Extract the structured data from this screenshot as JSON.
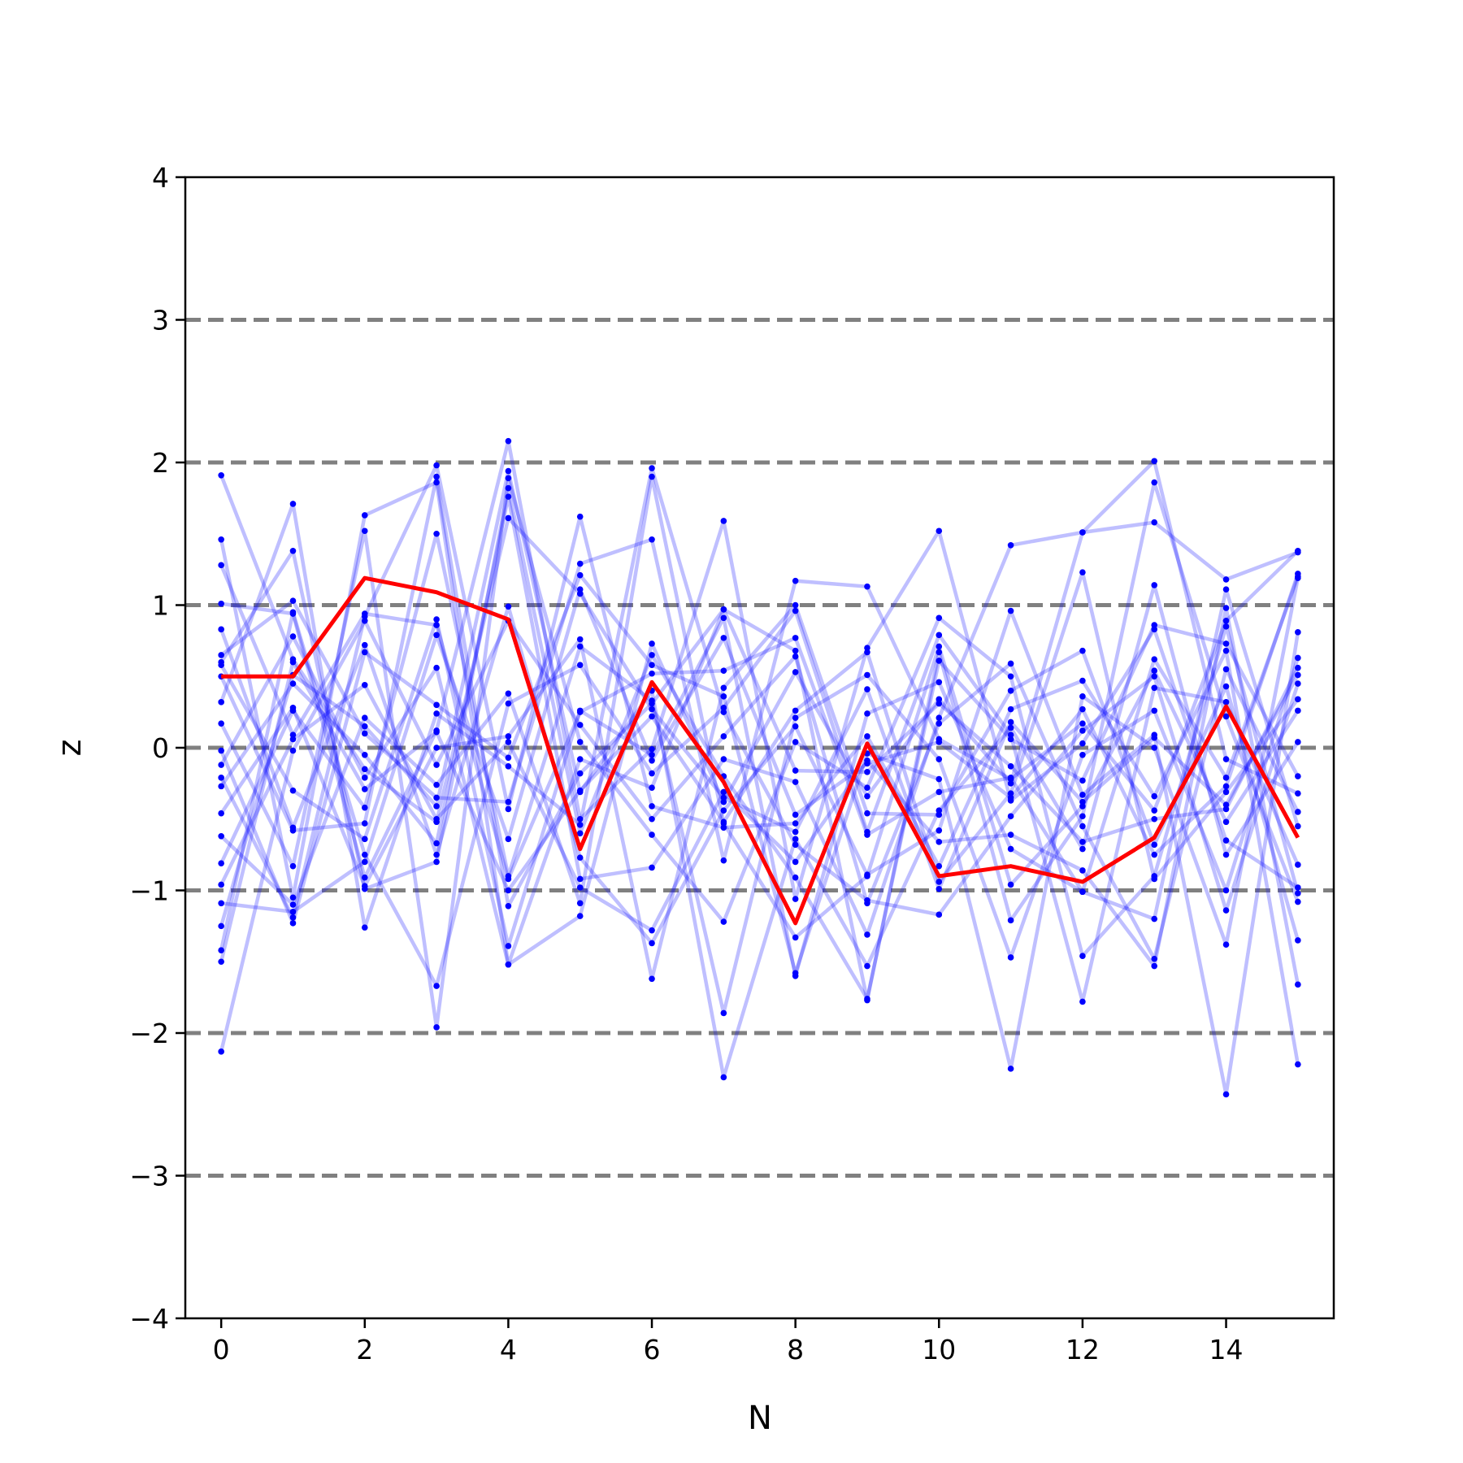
{
  "chart_data": {
    "type": "line",
    "xlabel": "N",
    "ylabel": "z",
    "xlim": [
      -0.5,
      15.5
    ],
    "ylim": [
      -4,
      4
    ],
    "x": [
      0,
      1,
      2,
      3,
      4,
      5,
      6,
      7,
      8,
      9,
      10,
      11,
      12,
      13,
      14,
      15
    ],
    "x_ticks": [
      0,
      2,
      4,
      6,
      8,
      10,
      12,
      14
    ],
    "y_ticks": [
      -4,
      -3,
      -2,
      -1,
      0,
      1,
      2,
      3,
      4
    ],
    "reference_lines": [
      -3,
      -2,
      -1,
      0,
      1,
      2,
      3
    ],
    "grid": false,
    "legend": "none",
    "colors": {
      "highlight": "#ff0000",
      "trajectories": "#0000ff",
      "reference": "#808080"
    },
    "highlight_series": {
      "values": [
        0.5,
        0.5,
        1.19,
        1.09,
        0.9,
        -0.71,
        0.46,
        -0.24,
        -1.23,
        0.03,
        -0.9,
        -0.83,
        -0.94,
        -0.63,
        0.29,
        -0.63
      ]
    },
    "trajectory_series": [
      {
        "values": [
          1.91,
          0.62,
          -0.15,
          -0.52,
          1.61,
          1.08,
          0.27,
          -0.35,
          -0.59,
          0.41,
          -0.99,
          0.18,
          -0.38,
          0.07,
          -0.4,
          0.51
        ]
      },
      {
        "values": [
          1.46,
          -1.05,
          1.63,
          1.86,
          -1.52,
          -0.08,
          -0.28,
          0.97,
          0.68,
          -1.77,
          0.67,
          -1.21,
          -0.48,
          1.86,
          0.22,
          -1.08
        ]
      },
      {
        "values": [
          1.28,
          0.09,
          0.94,
          0.86,
          -0.92,
          0.25,
          0.52,
          0.54,
          0.77,
          -0.61,
          -0.31,
          -0.21,
          -1.01,
          -1.2,
          1.11,
          -0.55
        ]
      },
      {
        "values": [
          1.01,
          0.94,
          -0.91,
          0.12,
          2.15,
          -0.5,
          -0.01,
          1.59,
          -1.06,
          0.7,
          1.52,
          -0.37,
          0.03,
          0.83,
          -0.65,
          -0.98
        ]
      },
      {
        "values": [
          0.83,
          -0.56,
          0.72,
          -0.75,
          0.99,
          -0.77,
          -1.37,
          -0.44,
          0.15,
          -0.89,
          -0.58,
          0.96,
          -0.33,
          0.09,
          -2.43,
          0.81
        ]
      },
      {
        "values": [
          0.65,
          1.03,
          0.1,
          -0.35,
          -0.38,
          1.29,
          1.46,
          -0.79,
          1.17,
          1.13,
          0.06,
          -0.22,
          0.17,
          -0.44,
          0.89,
          1.38
        ]
      },
      {
        "values": [
          0.58,
          -0.3,
          -0.64,
          0.9,
          -1.39,
          0.26,
          -0.05,
          0.91,
          -1.6,
          0.24,
          0.46,
          -0.71,
          -1.01,
          0.62,
          -0.21,
          1.2
        ]
      },
      {
        "values": [
          0.32,
          1.71,
          -1.26,
          0.24,
          -0.13,
          -0.54,
          1.96,
          0.25,
          -0.68,
          -1.07,
          -1.17,
          -0.48,
          0.12,
          0.5,
          -1.14,
          0.45
        ]
      },
      {
        "values": [
          0.17,
          -0.83,
          1.52,
          -1.96,
          1.89,
          0.04,
          -0.61,
          -1.22,
          0.04,
          -0.28,
          0.91,
          0.5,
          -1.46,
          -0.9,
          0.85,
          -1.02
        ]
      },
      {
        "values": [
          -0.12,
          0.78,
          -0.21,
          0.56,
          -1.52,
          -1.18,
          0.73,
          -0.38,
          0.53,
          -0.34,
          0.34,
          -0.25,
          1.51,
          2.01,
          -0.08,
          -0.32
        ]
      },
      {
        "values": [
          -0.21,
          -1.19,
          0.92,
          1.98,
          -0.43,
          1.62,
          -0.41,
          -0.56,
          -0.53,
          0.08,
          -0.83,
          0.27,
          0.47,
          -0.34,
          0.68,
          -2.22
        ]
      },
      {
        "values": [
          -0.27,
          0.45,
          -0.05,
          -0.67,
          1.76,
          -0.92,
          -0.84,
          -0.08,
          -0.24,
          -1.31,
          0.21,
          1.42,
          1.51,
          1.58,
          1.18,
          1.37
        ]
      },
      {
        "values": [
          -0.46,
          0.28,
          -0.97,
          0.0,
          0.08,
          0.76,
          -1.62,
          0.42,
          1.0,
          -0.46,
          -0.47,
          0.4,
          0.68,
          -0.68,
          0.43,
          -1.35
        ]
      },
      {
        "values": [
          -0.62,
          -1.1,
          0.21,
          -0.26,
          0.38,
          -1.09,
          1.9,
          -0.53,
          -1.33,
          -0.9,
          0.71,
          -0.96,
          -0.41,
          0.54,
          -0.52,
          0.26
        ]
      },
      {
        "values": [
          -0.81,
          0.26,
          -0.42,
          1.5,
          -0.9,
          0.71,
          0.33,
          -1.86,
          0.21,
          0.51,
          -0.08,
          -1.47,
          -0.05,
          0.26,
          -1.0,
          0.63
        ]
      },
      {
        "values": [
          -0.96,
          0.06,
          0.44,
          -0.5,
          0.04,
          -0.98,
          -1.28,
          -0.31,
          -0.8,
          -0.09,
          -0.66,
          -0.61,
          -0.86,
          -1.53,
          0.98,
          -1.66
        ]
      },
      {
        "values": [
          -1.09,
          -1.15,
          -0.8,
          0.79,
          -0.64,
          1.11,
          -0.09,
          0.77,
          -0.47,
          -0.11,
          0.04,
          -0.35,
          0.27,
          -0.75,
          -0.27,
          1.22
        ]
      },
      {
        "values": [
          -1.25,
          0.51,
          0.15,
          -0.41,
          1.94,
          -0.31,
          0.4,
          -2.31,
          -0.64,
          -1.53,
          -0.44,
          0.14,
          -0.71,
          1.14,
          -0.75,
          0.04
        ]
      },
      {
        "values": [
          -1.42,
          0.95,
          -0.75,
          -1.67,
          0.31,
          0.58,
          -0.18,
          0.28,
          0.96,
          -0.59,
          0.79,
          0.09,
          -1.78,
          0.42,
          0.32,
          -0.82
        ]
      },
      {
        "values": [
          -1.5,
          0.6,
          -0.29,
          0.11,
          -1.0,
          -0.3,
          0.22,
          -0.52,
          0.26,
          0.67,
          -0.94,
          -0.32,
          1.23,
          -0.92,
          -0.31,
          0.34
        ]
      },
      {
        "values": [
          -2.13,
          -0.02,
          0.89,
          -0.12,
          0.89,
          0.16,
          -0.5,
          0.08,
          0.64,
          -1.09,
          0.17,
          0.59,
          -0.55,
          -1.48,
          0.55,
          -0.45
        ]
      },
      {
        "values": [
          -0.02,
          -1.23,
          0.67,
          0.3,
          -0.07,
          1.21,
          0.58,
          0.36,
          -1.58,
          -0.04,
          -0.22,
          -2.25,
          0.36,
          0.0,
          -1.38,
          1.19
        ]
      },
      {
        "values": [
          0.5,
          -0.58,
          -0.53,
          1.9,
          -1.11,
          -0.18,
          0.31,
          0.97,
          -0.16,
          -0.17,
          0.31,
          -0.13,
          -0.66,
          -0.5,
          -0.43,
          0.56
        ]
      },
      {
        "values": [
          0.6,
          1.38,
          -0.99,
          -0.8,
          1.82,
          -0.6,
          0.65,
          -0.2,
          -0.91,
          -1.76,
          0.61,
          0.06,
          -0.23,
          0.86,
          0.73,
          -0.2
        ]
      }
    ]
  }
}
